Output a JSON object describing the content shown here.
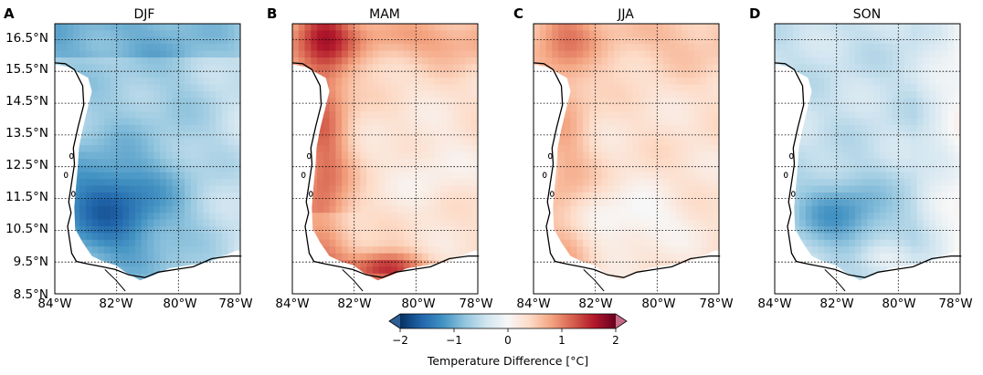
{
  "chart_data": [
    {
      "type": "heatmap",
      "panel_label": "A",
      "title": "DJF",
      "xlim": [
        -84,
        -78
      ],
      "ylim": [
        8.5,
        17.0
      ],
      "x_ticks": [
        -84,
        -82,
        -80,
        -78
      ],
      "y_ticks": [
        8.5,
        9.5,
        10.5,
        11.5,
        12.5,
        13.5,
        14.5,
        15.5,
        16.5
      ],
      "field": {
        "base": -0.7,
        "north_strip": -1.1,
        "core_lat": 11.2,
        "core_lon": -82.2,
        "core_amp": -0.9
      }
    },
    {
      "type": "heatmap",
      "panel_label": "B",
      "title": "MAM",
      "xlim": [
        -84,
        -78
      ],
      "ylim": [
        8.5,
        17.0
      ],
      "x_ticks": [
        -84,
        -82,
        -80,
        -78
      ],
      "y_ticks": [
        8.5,
        9.5,
        10.5,
        11.5,
        12.5,
        13.5,
        14.5,
        15.5,
        16.5
      ],
      "field": {
        "base": 0.3,
        "coast_amp": 0.8,
        "south_amp": 1.3,
        "north_amp": 0.5
      }
    },
    {
      "type": "heatmap",
      "panel_label": "C",
      "title": "JJA",
      "xlim": [
        -84,
        -78
      ],
      "ylim": [
        8.5,
        17.0
      ],
      "x_ticks": [
        -84,
        -82,
        -80,
        -78
      ],
      "y_ticks": [
        8.5,
        9.5,
        10.5,
        11.5,
        12.5,
        13.5,
        14.5,
        15.5,
        16.5
      ],
      "field": {
        "base": 0.3,
        "coast_amp": 0.4,
        "central_amp": -0.35,
        "north_amp": 0.3
      }
    },
    {
      "type": "heatmap",
      "panel_label": "D",
      "title": "SON",
      "xlim": [
        -84,
        -78
      ],
      "ylim": [
        8.5,
        17.0
      ],
      "x_ticks": [
        -84,
        -82,
        -80,
        -78
      ],
      "y_ticks": [
        8.5,
        9.5,
        10.5,
        11.5,
        12.5,
        13.5,
        14.5,
        15.5,
        16.5
      ],
      "field": {
        "base": -0.45,
        "core_lat": 11.0,
        "core_lon": -81.8,
        "core_amp": -0.7
      }
    }
  ],
  "y_tick_labels": [
    "8.5°N",
    "9.5°N",
    "10.5°N",
    "11.5°N",
    "12.5°N",
    "13.5°N",
    "14.5°N",
    "15.5°N",
    "16.5°N"
  ],
  "x_tick_labels": [
    "84°W",
    "82°W",
    "80°W",
    "78°W"
  ],
  "colorbar": {
    "label": "Temperature Difference [°C]",
    "ticks": [
      -2,
      -1,
      0,
      1,
      2
    ],
    "tick_labels": [
      "−2",
      "−1",
      "0",
      "1",
      "2"
    ],
    "range": [
      -2,
      2
    ],
    "extend": "both",
    "cmap": [
      "#053061",
      "#2166ac",
      "#4393c3",
      "#92c5de",
      "#d1e5f0",
      "#f7f7f7",
      "#fddbc7",
      "#f4a582",
      "#d6604d",
      "#b2182b",
      "#67001f"
    ],
    "under_color": "#2f5f93",
    "over_color": "#c76a86"
  },
  "colors": {
    "land": "#ffffff",
    "coast": "#000000",
    "grid": "#000000"
  }
}
